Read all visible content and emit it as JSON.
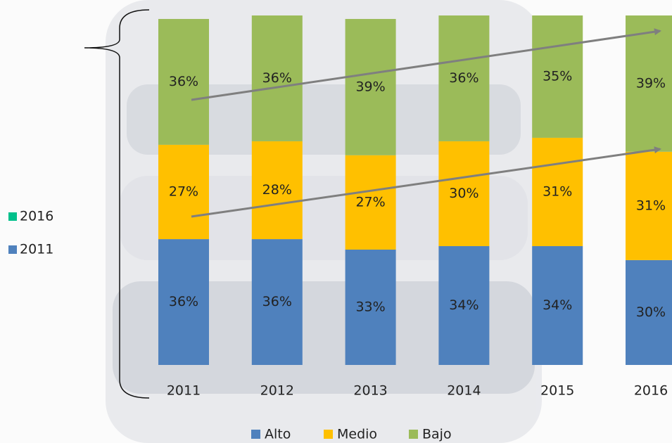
{
  "chart_data": {
    "type": "stacked_bar",
    "categories": [
      "2011",
      "2012",
      "2013",
      "2014",
      "2015",
      "2016"
    ],
    "series": [
      {
        "name": "Alto",
        "color": "#4f81bd",
        "values": [
          36,
          36,
          33,
          34,
          34,
          30
        ],
        "value_labels": [
          "36%",
          "36%",
          "33%",
          "34%",
          "34%",
          "30%"
        ]
      },
      {
        "name": "Medio",
        "color": "#ffc000",
        "values": [
          27,
          28,
          27,
          30,
          31,
          31
        ],
        "value_labels": [
          "27%",
          "28%",
          "27%",
          "30%",
          "31%",
          "31%"
        ]
      },
      {
        "name": "Bajo",
        "color": "#9bbb59",
        "values": [
          36,
          36,
          39,
          36,
          35,
          39
        ],
        "value_labels": [
          "36%",
          "36%",
          "39%",
          "36%",
          "35%",
          "39%"
        ]
      }
    ],
    "ylim": [
      0,
      100
    ],
    "side_legend": [
      {
        "name": "2016",
        "color": "#00c08b"
      },
      {
        "name": "2011",
        "color": "#4f81bd"
      }
    ]
  }
}
